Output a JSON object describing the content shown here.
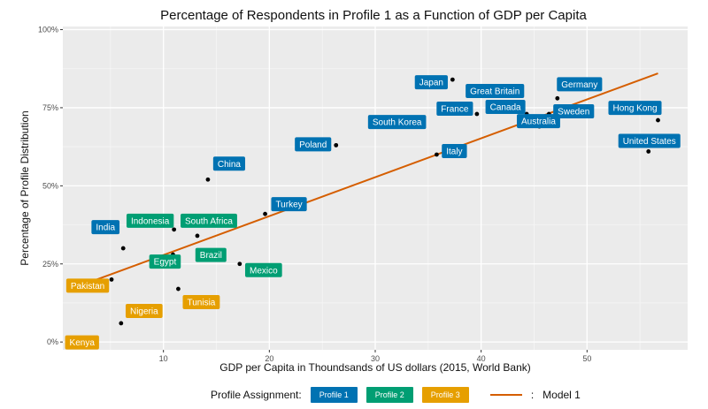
{
  "chart_data": {
    "type": "scatter",
    "title": "Percentage of Respondents in Profile 1 as a Function of GDP per Capita",
    "xlabel": "GDP per Capita in Thoundsands of US dollars (2015, World Bank)",
    "ylabel": "Percentage of Profile Distribution",
    "xlim": [
      0.5,
      59.5
    ],
    "ylim": [
      -0.025,
      1.01
    ],
    "x_ticks": [
      10,
      20,
      30,
      40,
      50
    ],
    "y_ticks": [
      0,
      0.25,
      0.5,
      0.75,
      1.0
    ],
    "y_tick_labels": [
      "0%",
      "25%",
      "50%",
      "75%",
      "100%"
    ],
    "grid": true,
    "legend_position": "bottom",
    "points": [
      {
        "label": "Kenya",
        "x": 2.9,
        "y": 0.01,
        "profile": 3
      },
      {
        "label": "Pakistan",
        "x": 5.1,
        "y": 0.2,
        "profile": 3
      },
      {
        "label": "Nigeria",
        "x": 6.0,
        "y": 0.06,
        "profile": 3
      },
      {
        "label": "India",
        "x": 6.2,
        "y": 0.3,
        "profile": 1
      },
      {
        "label": "Egypt",
        "x": 10.9,
        "y": 0.28,
        "profile": 2
      },
      {
        "label": "Indonesia",
        "x": 11.0,
        "y": 0.36,
        "profile": 2
      },
      {
        "label": "Tunisia",
        "x": 11.4,
        "y": 0.17,
        "profile": 3
      },
      {
        "label": "South Africa",
        "x": 13.2,
        "y": 0.34,
        "profile": 2
      },
      {
        "label": "China",
        "x": 14.2,
        "y": 0.52,
        "profile": 1
      },
      {
        "label": "Brazil",
        "x": 15.4,
        "y": 0.29,
        "profile": 2
      },
      {
        "label": "Mexico",
        "x": 17.2,
        "y": 0.25,
        "profile": 2
      },
      {
        "label": "Turkey",
        "x": 19.6,
        "y": 0.41,
        "profile": 1
      },
      {
        "label": "Poland",
        "x": 26.3,
        "y": 0.63,
        "profile": 1
      },
      {
        "label": "South Korea",
        "x": 34.4,
        "y": 0.69,
        "profile": 1
      },
      {
        "label": "Italy",
        "x": 35.8,
        "y": 0.6,
        "profile": 1
      },
      {
        "label": "Japan",
        "x": 37.3,
        "y": 0.84,
        "profile": 1
      },
      {
        "label": "France",
        "x": 39.6,
        "y": 0.73,
        "profile": 1
      },
      {
        "label": "Great Britain",
        "x": 41.3,
        "y": 0.75,
        "profile": 1
      },
      {
        "label": "Canada",
        "x": 44.3,
        "y": 0.73,
        "profile": 1
      },
      {
        "label": "Australia",
        "x": 45.5,
        "y": 0.69,
        "profile": 1
      },
      {
        "label": "Sweden",
        "x": 46.4,
        "y": 0.73,
        "profile": 1
      },
      {
        "label": "Germany",
        "x": 47.2,
        "y": 0.78,
        "profile": 1
      },
      {
        "label": "United States",
        "x": 55.8,
        "y": 0.61,
        "profile": 1
      },
      {
        "label": "Hong Kong",
        "x": 56.7,
        "y": 0.71,
        "profile": 1
      }
    ],
    "trend_line": {
      "name": "Model 1",
      "x": [
        2.9,
        56.7
      ],
      "y": [
        0.19,
        0.86
      ]
    },
    "profile_colors": {
      "1": "#0072b2",
      "2": "#009e73",
      "3": "#e69f00"
    },
    "trend_color": "#d55e00"
  },
  "legend": {
    "title": "Profile Assignment:",
    "profile1": "Profile 1",
    "profile2": "Profile 2",
    "profile3": "Profile 3",
    "model_sep": ":",
    "model": "Model 1"
  }
}
